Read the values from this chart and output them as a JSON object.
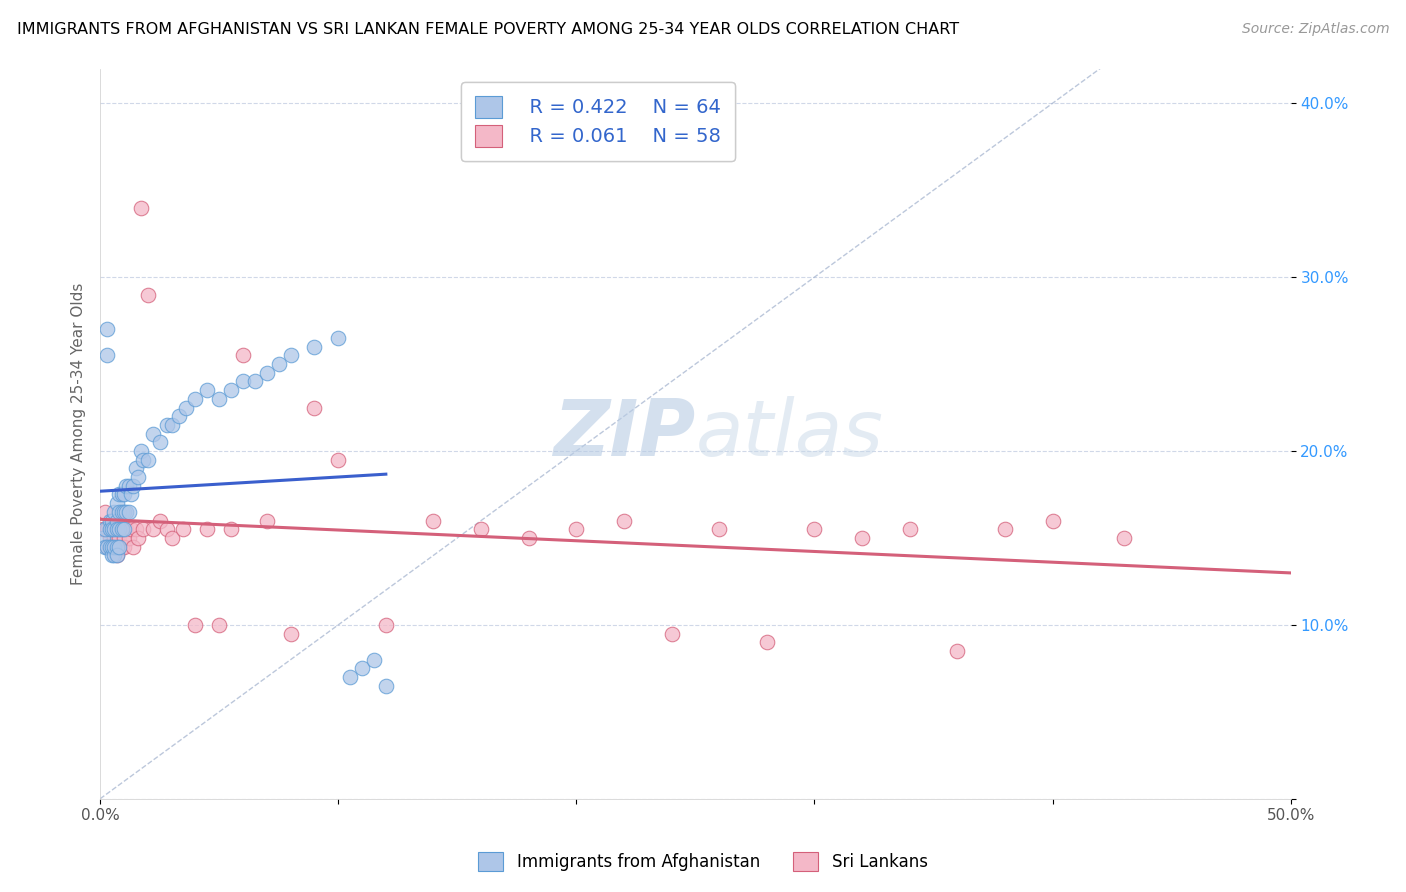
{
  "title": "IMMIGRANTS FROM AFGHANISTAN VS SRI LANKAN FEMALE POVERTY AMONG 25-34 YEAR OLDS CORRELATION CHART",
  "source": "Source: ZipAtlas.com",
  "ylabel": "Female Poverty Among 25-34 Year Olds",
  "xlim": [
    0.0,
    0.5
  ],
  "ylim": [
    0.0,
    0.42
  ],
  "xticks": [
    0.0,
    0.1,
    0.2,
    0.3,
    0.4,
    0.5
  ],
  "xticklabels": [
    "0.0%",
    "",
    "",
    "",
    "",
    "50.0%"
  ],
  "yticks": [
    0.0,
    0.1,
    0.2,
    0.3,
    0.4
  ],
  "yticklabels": [
    "",
    "10.0%",
    "20.0%",
    "30.0%",
    "40.0%"
  ],
  "afghanistan_color": "#aec6e8",
  "afghanistan_edge": "#5b9bd5",
  "srilanka_color": "#f4b8c8",
  "srilanka_edge": "#d4607a",
  "trend_afghanistan": "#3a5fcd",
  "trend_srilanka": "#d4607a",
  "diagonal_color": "#a0b0cc",
  "legend_R_afghanistan": "R = 0.422",
  "legend_N_afghanistan": "N = 64",
  "legend_R_srilanka": "R = 0.061",
  "legend_N_srilanka": "N = 58",
  "watermark_zip": "ZIP",
  "watermark_atlas": "atlas",
  "afghanistan_x": [
    0.001,
    0.002,
    0.002,
    0.003,
    0.003,
    0.003,
    0.004,
    0.004,
    0.004,
    0.005,
    0.005,
    0.005,
    0.005,
    0.006,
    0.006,
    0.006,
    0.006,
    0.007,
    0.007,
    0.007,
    0.007,
    0.007,
    0.008,
    0.008,
    0.008,
    0.008,
    0.009,
    0.009,
    0.009,
    0.01,
    0.01,
    0.01,
    0.011,
    0.011,
    0.012,
    0.012,
    0.013,
    0.014,
    0.015,
    0.016,
    0.017,
    0.018,
    0.02,
    0.022,
    0.025,
    0.028,
    0.03,
    0.033,
    0.036,
    0.04,
    0.045,
    0.05,
    0.055,
    0.06,
    0.065,
    0.07,
    0.075,
    0.08,
    0.09,
    0.1,
    0.105,
    0.11,
    0.115,
    0.12
  ],
  "afghanistan_y": [
    0.15,
    0.155,
    0.145,
    0.27,
    0.255,
    0.145,
    0.16,
    0.155,
    0.145,
    0.16,
    0.155,
    0.14,
    0.145,
    0.165,
    0.155,
    0.14,
    0.145,
    0.17,
    0.16,
    0.155,
    0.145,
    0.14,
    0.175,
    0.165,
    0.155,
    0.145,
    0.175,
    0.165,
    0.155,
    0.175,
    0.165,
    0.155,
    0.18,
    0.165,
    0.18,
    0.165,
    0.175,
    0.18,
    0.19,
    0.185,
    0.2,
    0.195,
    0.195,
    0.21,
    0.205,
    0.215,
    0.215,
    0.22,
    0.225,
    0.23,
    0.235,
    0.23,
    0.235,
    0.24,
    0.24,
    0.245,
    0.25,
    0.255,
    0.26,
    0.265,
    0.07,
    0.075,
    0.08,
    0.065
  ],
  "srilanka_x": [
    0.001,
    0.002,
    0.003,
    0.003,
    0.004,
    0.004,
    0.005,
    0.005,
    0.006,
    0.006,
    0.007,
    0.007,
    0.007,
    0.008,
    0.008,
    0.009,
    0.009,
    0.01,
    0.01,
    0.011,
    0.012,
    0.013,
    0.014,
    0.015,
    0.016,
    0.017,
    0.018,
    0.02,
    0.022,
    0.025,
    0.028,
    0.03,
    0.035,
    0.04,
    0.045,
    0.05,
    0.055,
    0.06,
    0.07,
    0.08,
    0.09,
    0.1,
    0.12,
    0.14,
    0.16,
    0.18,
    0.2,
    0.22,
    0.24,
    0.26,
    0.28,
    0.3,
    0.32,
    0.34,
    0.36,
    0.38,
    0.4,
    0.43
  ],
  "srilanka_y": [
    0.155,
    0.165,
    0.145,
    0.155,
    0.15,
    0.145,
    0.155,
    0.145,
    0.15,
    0.145,
    0.155,
    0.15,
    0.14,
    0.155,
    0.15,
    0.145,
    0.155,
    0.15,
    0.145,
    0.155,
    0.15,
    0.155,
    0.145,
    0.155,
    0.15,
    0.34,
    0.155,
    0.29,
    0.155,
    0.16,
    0.155,
    0.15,
    0.155,
    0.1,
    0.155,
    0.1,
    0.155,
    0.255,
    0.16,
    0.095,
    0.225,
    0.195,
    0.1,
    0.16,
    0.155,
    0.15,
    0.155,
    0.16,
    0.095,
    0.155,
    0.09,
    0.155,
    0.15,
    0.155,
    0.085,
    0.155,
    0.16,
    0.15
  ]
}
